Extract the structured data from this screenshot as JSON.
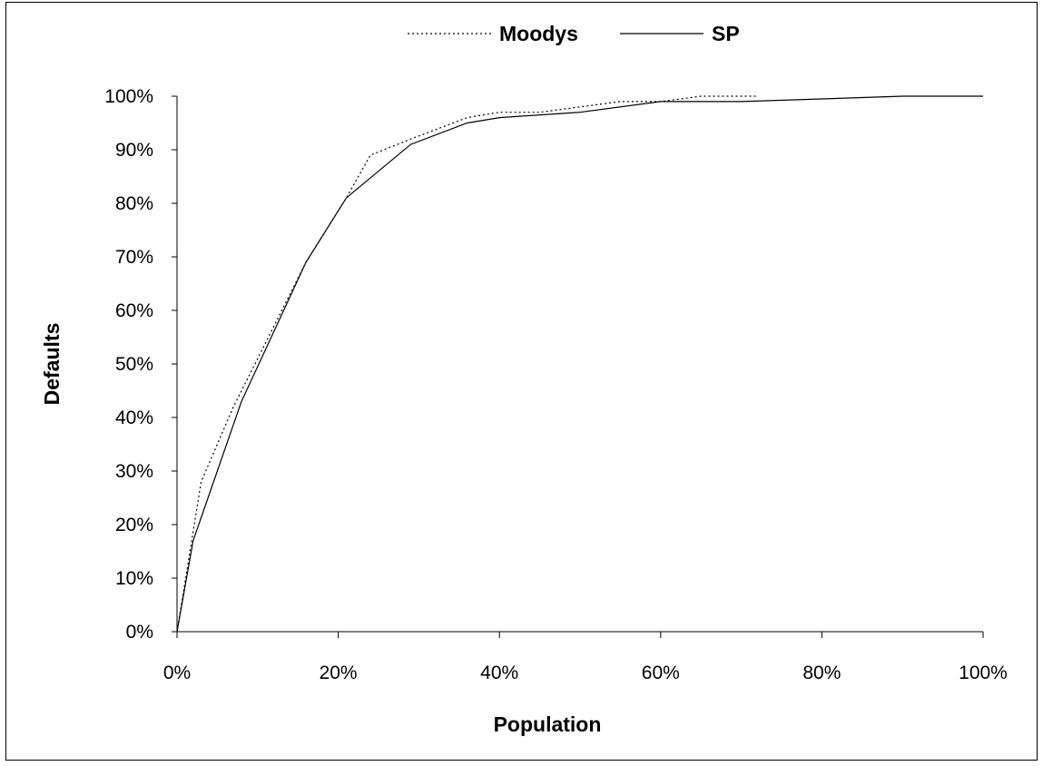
{
  "chart_data": {
    "type": "line",
    "title": "",
    "xlabel": "Population",
    "ylabel": "Defaults",
    "xlim": [
      0,
      100
    ],
    "ylim": [
      0,
      100
    ],
    "x_ticks": [
      "0%",
      "20%",
      "40%",
      "60%",
      "80%",
      "100%"
    ],
    "y_ticks": [
      "0%",
      "10%",
      "20%",
      "30%",
      "40%",
      "50%",
      "60%",
      "70%",
      "80%",
      "90%",
      "100%"
    ],
    "grid": false,
    "legend_position": "top-center",
    "series": [
      {
        "name": "Moodys",
        "line_style": "dotted",
        "color": "#000000",
        "x": [
          0,
          3,
          7,
          12,
          16,
          21,
          24,
          29,
          36,
          40,
          45,
          50,
          55,
          60,
          65,
          72
        ],
        "y": [
          0,
          28,
          42,
          57,
          69,
          81,
          89,
          92,
          96,
          97,
          97,
          98,
          99,
          99,
          100,
          100
        ]
      },
      {
        "name": "SP",
        "line_style": "solid",
        "color": "#000000",
        "x": [
          0,
          2,
          5,
          8,
          12,
          16,
          21,
          25,
          29,
          36,
          40,
          50,
          60,
          70,
          80,
          90,
          100
        ],
        "y": [
          0,
          17,
          30,
          43,
          56,
          69,
          81,
          86,
          91,
          95,
          96,
          97,
          99,
          99,
          99.5,
          100,
          100
        ]
      }
    ]
  }
}
